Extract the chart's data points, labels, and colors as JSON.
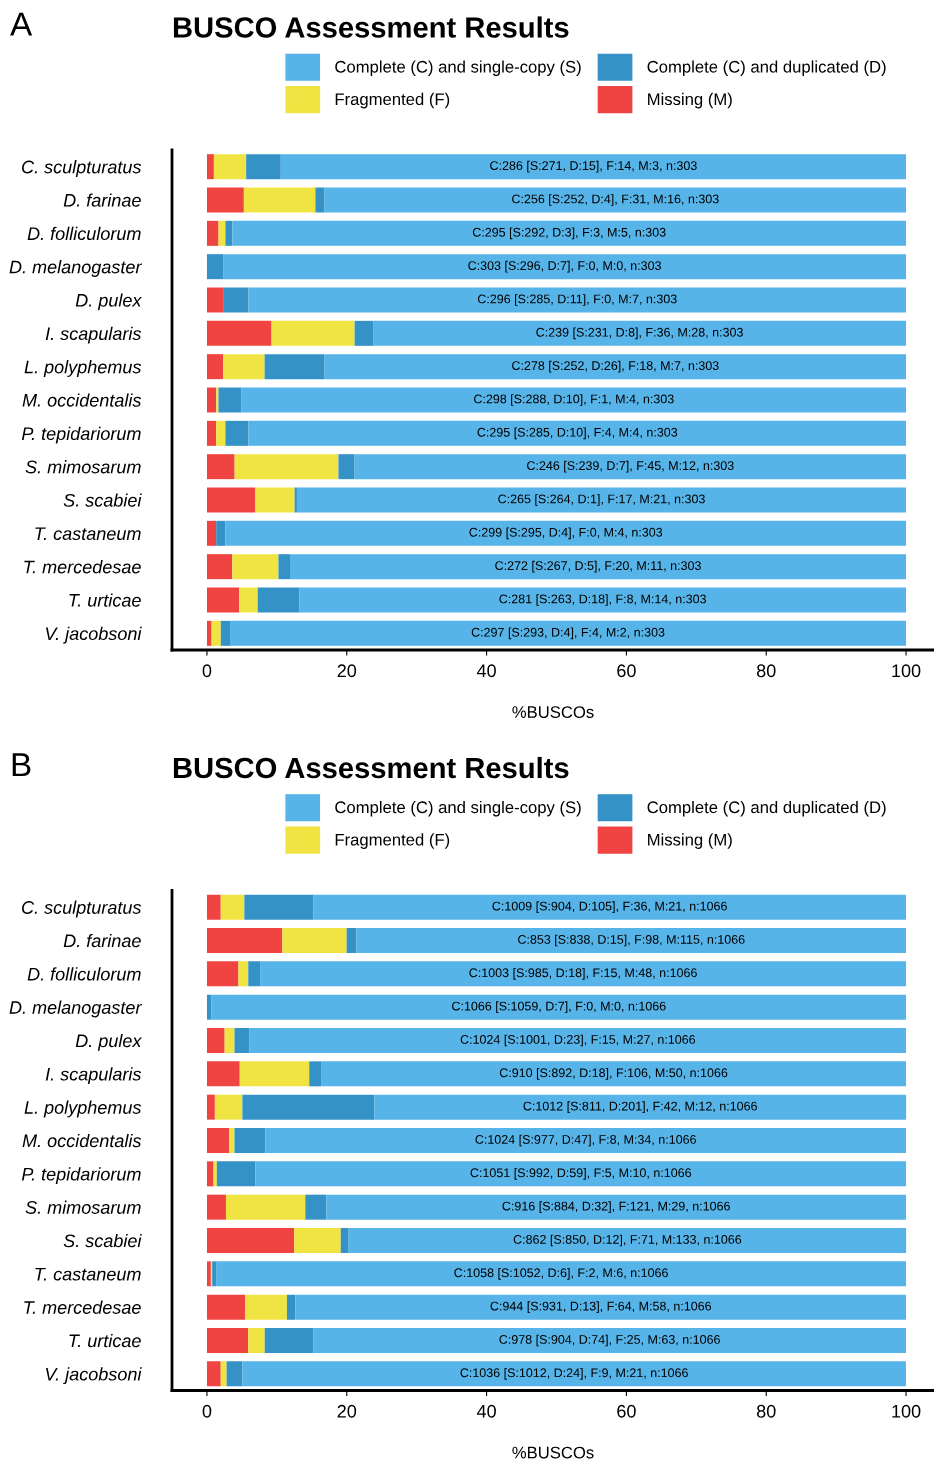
{
  "chart_data": [
    {
      "type": "bar",
      "orientation": "horizontal",
      "stacked": true,
      "title": "BUSCO Assessment Results",
      "xlabel": "%BUSCOs",
      "legend": "top",
      "grid": false,
      "categories": [
        "C. sculpturatus",
        "D. farinae",
        "D. folliculorum",
        "D. melanogaster",
        "D. pulex",
        "I. scapularis",
        "L. polyphemus",
        "M. occidentalis",
        "P. tepidariorum",
        "S. mimosarum",
        "S. scabiei",
        "T. castaneum",
        "T. mercedesae",
        "T. urticae",
        "V. jacobsoni"
      ],
      "xlim": [
        -5,
        104
      ],
      "xticks": [
        0,
        20,
        40,
        60,
        80,
        100
      ],
      "series": [
        {
          "name": "Missing (M)",
          "color": "#f04442",
          "values": [
            0.99,
            5.28,
            1.65,
            0,
            2.31,
            9.24,
            2.31,
            1.32,
            1.32,
            3.96,
            6.93,
            1.32,
            3.63,
            4.62,
            0.66
          ]
        },
        {
          "name": "Fragmented (F)",
          "color": "#f0e442",
          "values": [
            4.62,
            10.23,
            0.99,
            0,
            0,
            11.88,
            5.94,
            0.33,
            1.32,
            14.85,
            5.61,
            0,
            6.6,
            2.64,
            1.32
          ]
        },
        {
          "name": "Complete (C) and duplicated (D)",
          "color": "#3492c7",
          "values": [
            4.95,
            1.32,
            0.99,
            2.31,
            3.63,
            2.64,
            8.58,
            3.3,
            3.3,
            2.31,
            0.33,
            1.32,
            1.65,
            5.94,
            1.32
          ]
        },
        {
          "name": "Complete (C) and single-copy (S)",
          "color": "#56b4e9",
          "values": [
            89.44,
            83.17,
            96.37,
            97.69,
            94.06,
            76.24,
            83.17,
            95.05,
            94.06,
            78.88,
            87.13,
            97.36,
            88.12,
            86.8,
            96.7
          ],
          "value_labels": [
            "C:286 [S:271, D:15], F:14, M:3, n:303",
            "C:256 [S:252, D:4], F:31, M:16, n:303",
            "C:295 [S:292, D:3], F:3, M:5, n:303",
            "C:303 [S:296, D:7], F:0, M:0, n:303",
            "C:296 [S:285, D:11], F:0, M:7, n:303",
            "C:239 [S:231, D:8], F:36, M:28, n:303",
            "C:278 [S:252, D:26], F:18, M:7, n:303",
            "C:298 [S:288, D:10], F:1, M:4, n:303",
            "C:295 [S:285, D:10], F:4, M:4, n:303",
            "C:246 [S:239, D:7], F:45, M:12, n:303",
            "C:265 [S:264, D:1], F:17, M:21, n:303",
            "C:299 [S:295, D:4], F:0, M:4, n:303",
            "C:272 [S:267, D:5], F:20, M:11, n:303",
            "C:281 [S:263, D:18], F:8, M:14, n:303",
            "C:297 [S:293, D:4], F:4, M:2, n:303"
          ]
        }
      ],
      "annotations": [
        "A"
      ]
    },
    {
      "type": "bar",
      "orientation": "horizontal",
      "stacked": true,
      "title": "BUSCO Assessment Results",
      "xlabel": "%BUSCOs",
      "legend": "top",
      "grid": false,
      "categories": [
        "C. sculpturatus",
        "D. farinae",
        "D. folliculorum",
        "D. melanogaster",
        "D. pulex",
        "I. scapularis",
        "L. polyphemus",
        "M. occidentalis",
        "P. tepidariorum",
        "S. mimosarum",
        "S. scabiei",
        "T. castaneum",
        "T. mercedesae",
        "T. urticae",
        "V. jacobsoni"
      ],
      "xlim": [
        -5,
        104
      ],
      "xticks": [
        0,
        20,
        40,
        60,
        80,
        100
      ],
      "series": [
        {
          "name": "Missing (M)",
          "color": "#f04442",
          "values": [
            1.97,
            10.79,
            4.5,
            0,
            2.53,
            4.69,
            1.13,
            3.19,
            0.94,
            2.72,
            12.48,
            0.56,
            5.44,
            5.91,
            1.97
          ]
        },
        {
          "name": "Fragmented (F)",
          "color": "#f0e442",
          "values": [
            3.38,
            9.19,
            1.41,
            0,
            1.41,
            9.94,
            3.94,
            0.75,
            0.47,
            11.35,
            6.66,
            0.19,
            6.0,
            2.35,
            0.84
          ]
        },
        {
          "name": "Complete (C) and duplicated (D)",
          "color": "#3492c7",
          "values": [
            9.85,
            1.41,
            1.69,
            0.66,
            2.16,
            1.69,
            18.86,
            4.41,
            5.53,
            3.0,
            1.13,
            0.56,
            1.22,
            6.94,
            2.25
          ]
        },
        {
          "name": "Complete (C) and single-copy (S)",
          "color": "#56b4e9",
          "values": [
            84.8,
            78.61,
            92.4,
            99.34,
            93.9,
            83.68,
            76.08,
            91.65,
            93.06,
            82.93,
            79.74,
            98.69,
            87.34,
            84.8,
            94.93
          ],
          "value_labels": [
            "C:1009 [S:904, D:105], F:36, M:21, n:1066",
            "C:853 [S:838, D:15], F:98, M:115, n:1066",
            "C:1003 [S:985, D:18], F:15, M:48, n:1066",
            "C:1066 [S:1059, D:7], F:0, M:0, n:1066",
            "C:1024 [S:1001, D:23], F:15, M:27, n:1066",
            "C:910 [S:892, D:18], F:106, M:50, n:1066",
            "C:1012 [S:811, D:201], F:42, M:12, n:1066",
            "C:1024 [S:977, D:47], F:8, M:34, n:1066",
            "C:1051 [S:992, D:59], F:5, M:10, n:1066",
            "C:916 [S:884, D:32], F:121, M:29, n:1066",
            "C:862 [S:850, D:12], F:71, M:133, n:1066",
            "C:1058 [S:1052, D:6], F:2, M:6, n:1066",
            "C:944 [S:931, D:13], F:64, M:58, n:1066",
            "C:978 [S:904, D:74], F:25, M:63, n:1066",
            "C:1036 [S:1012, D:24], F:9, M:21, n:1066"
          ]
        }
      ],
      "annotations": [
        "B"
      ]
    }
  ]
}
